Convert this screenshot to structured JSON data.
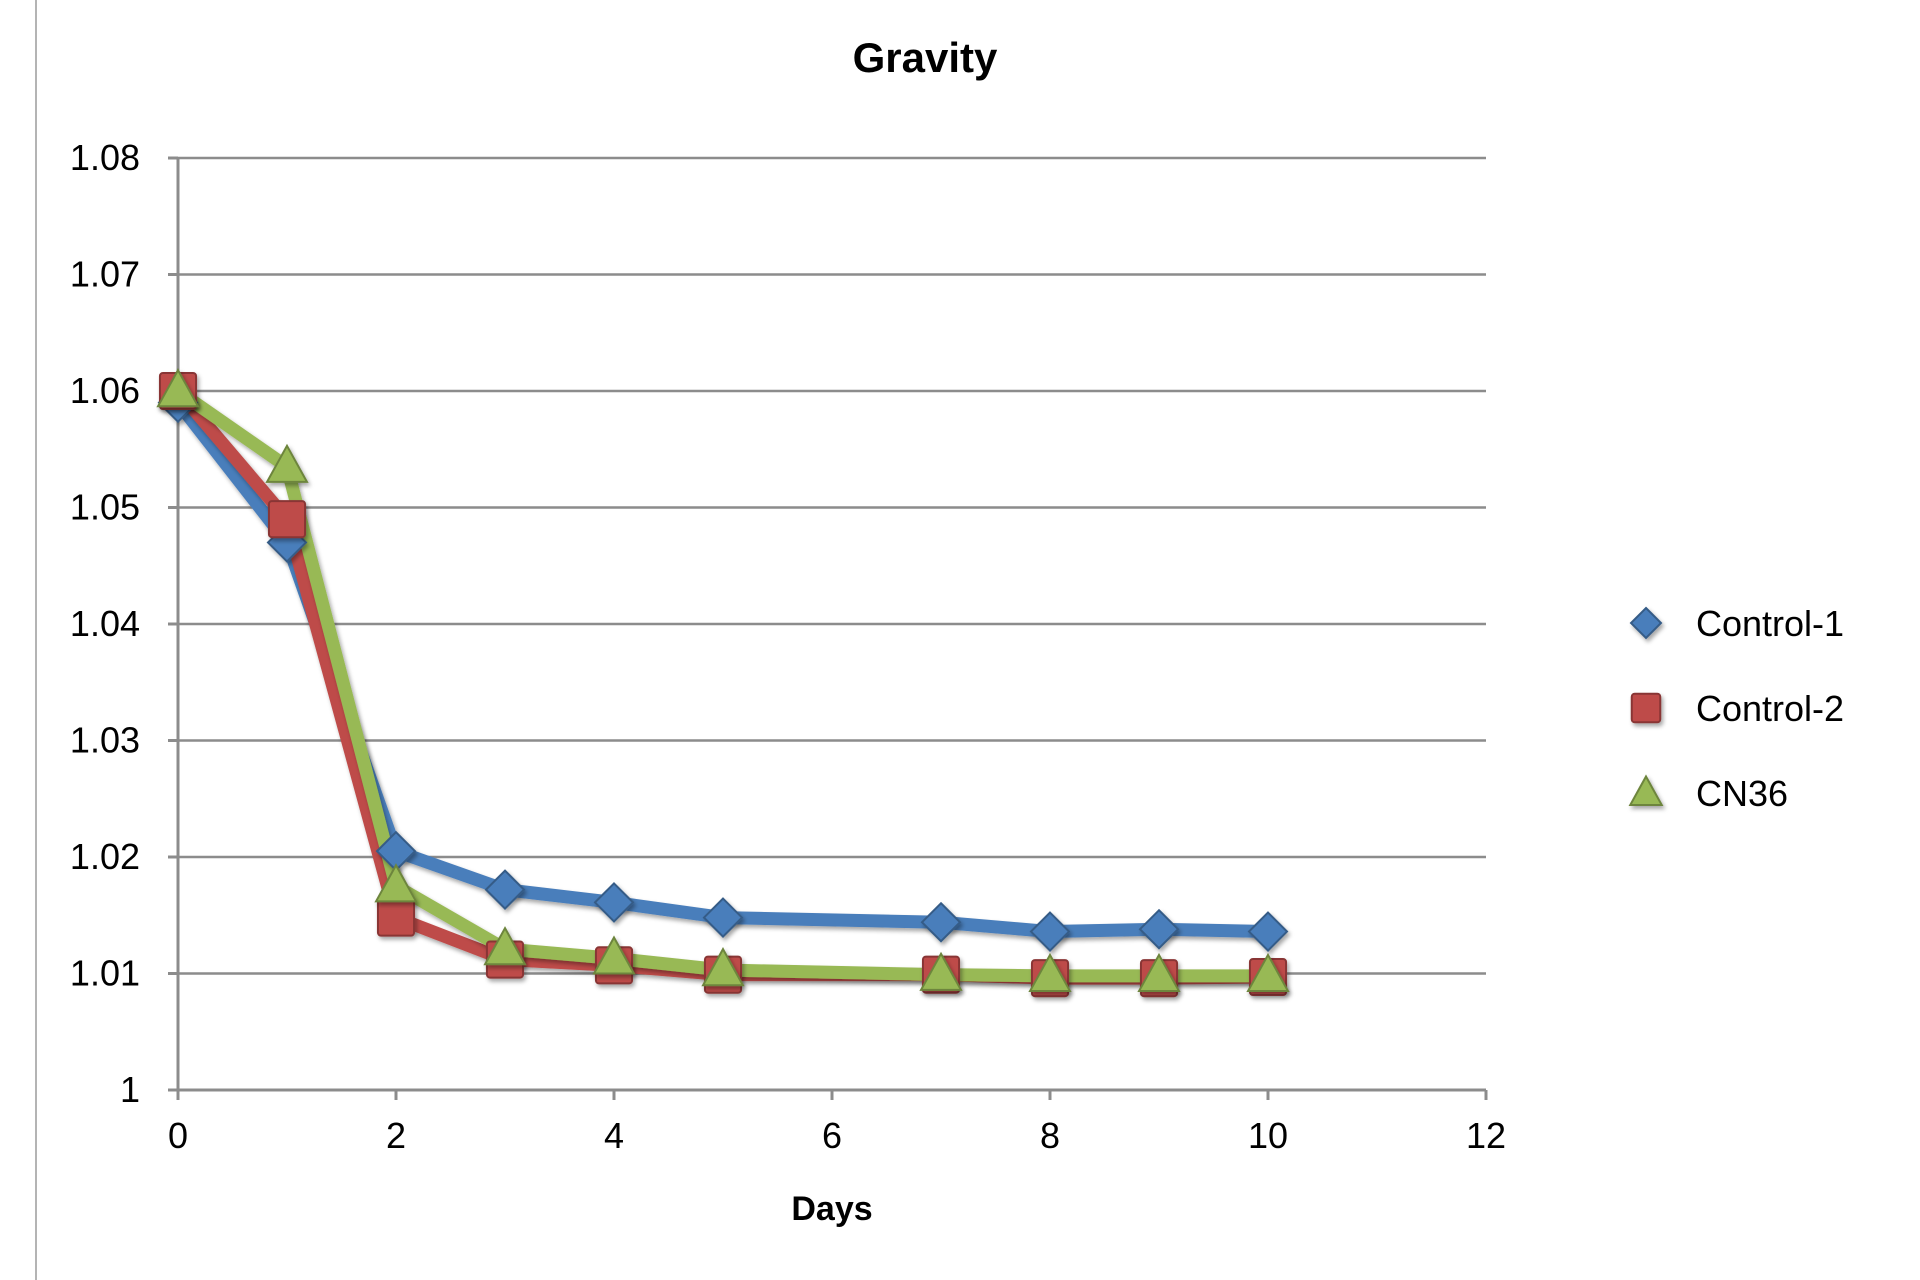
{
  "chart_data": {
    "type": "line",
    "title": "Gravity",
    "xlabel": "Days",
    "ylabel": "",
    "xlim": [
      0,
      12
    ],
    "ylim": [
      1,
      1.08
    ],
    "x_ticks": [
      0,
      2,
      4,
      6,
      8,
      10,
      12
    ],
    "y_ticks": [
      1,
      1.01,
      1.02,
      1.03,
      1.04,
      1.05,
      1.06,
      1.07,
      1.08
    ],
    "y_tick_labels": [
      "1",
      "1.01",
      "1.02",
      "1.03",
      "1.04",
      "1.05",
      "1.06",
      "1.07",
      "1.08"
    ],
    "grid": "horizontal",
    "legend_position": "right",
    "series": [
      {
        "name": "Control-1",
        "color": "#4a7ebb",
        "marker": "diamond",
        "x": [
          0,
          1,
          2,
          3,
          4,
          5,
          7,
          8,
          9,
          10
        ],
        "y": [
          1.059,
          1.047,
          1.0205,
          1.0172,
          1.0161,
          1.0148,
          1.0144,
          1.0136,
          1.0138,
          1.0136
        ]
      },
      {
        "name": "Control-2",
        "color": "#be4b48",
        "marker": "square",
        "x": [
          0,
          1,
          2,
          3,
          4,
          5,
          7,
          8,
          9,
          10
        ],
        "y": [
          1.06,
          1.049,
          1.0148,
          1.0112,
          1.0107,
          1.0099,
          1.0099,
          1.0096,
          1.0096,
          1.0097
        ]
      },
      {
        "name": "CN36",
        "color": "#98b954",
        "marker": "triangle",
        "x": [
          0,
          1,
          2,
          3,
          4,
          5,
          7,
          8,
          9,
          10
        ],
        "y": [
          1.06,
          1.0535,
          1.0175,
          1.0121,
          1.0113,
          1.0103,
          1.0099,
          1.0098,
          1.0098,
          1.0098
        ]
      }
    ]
  }
}
